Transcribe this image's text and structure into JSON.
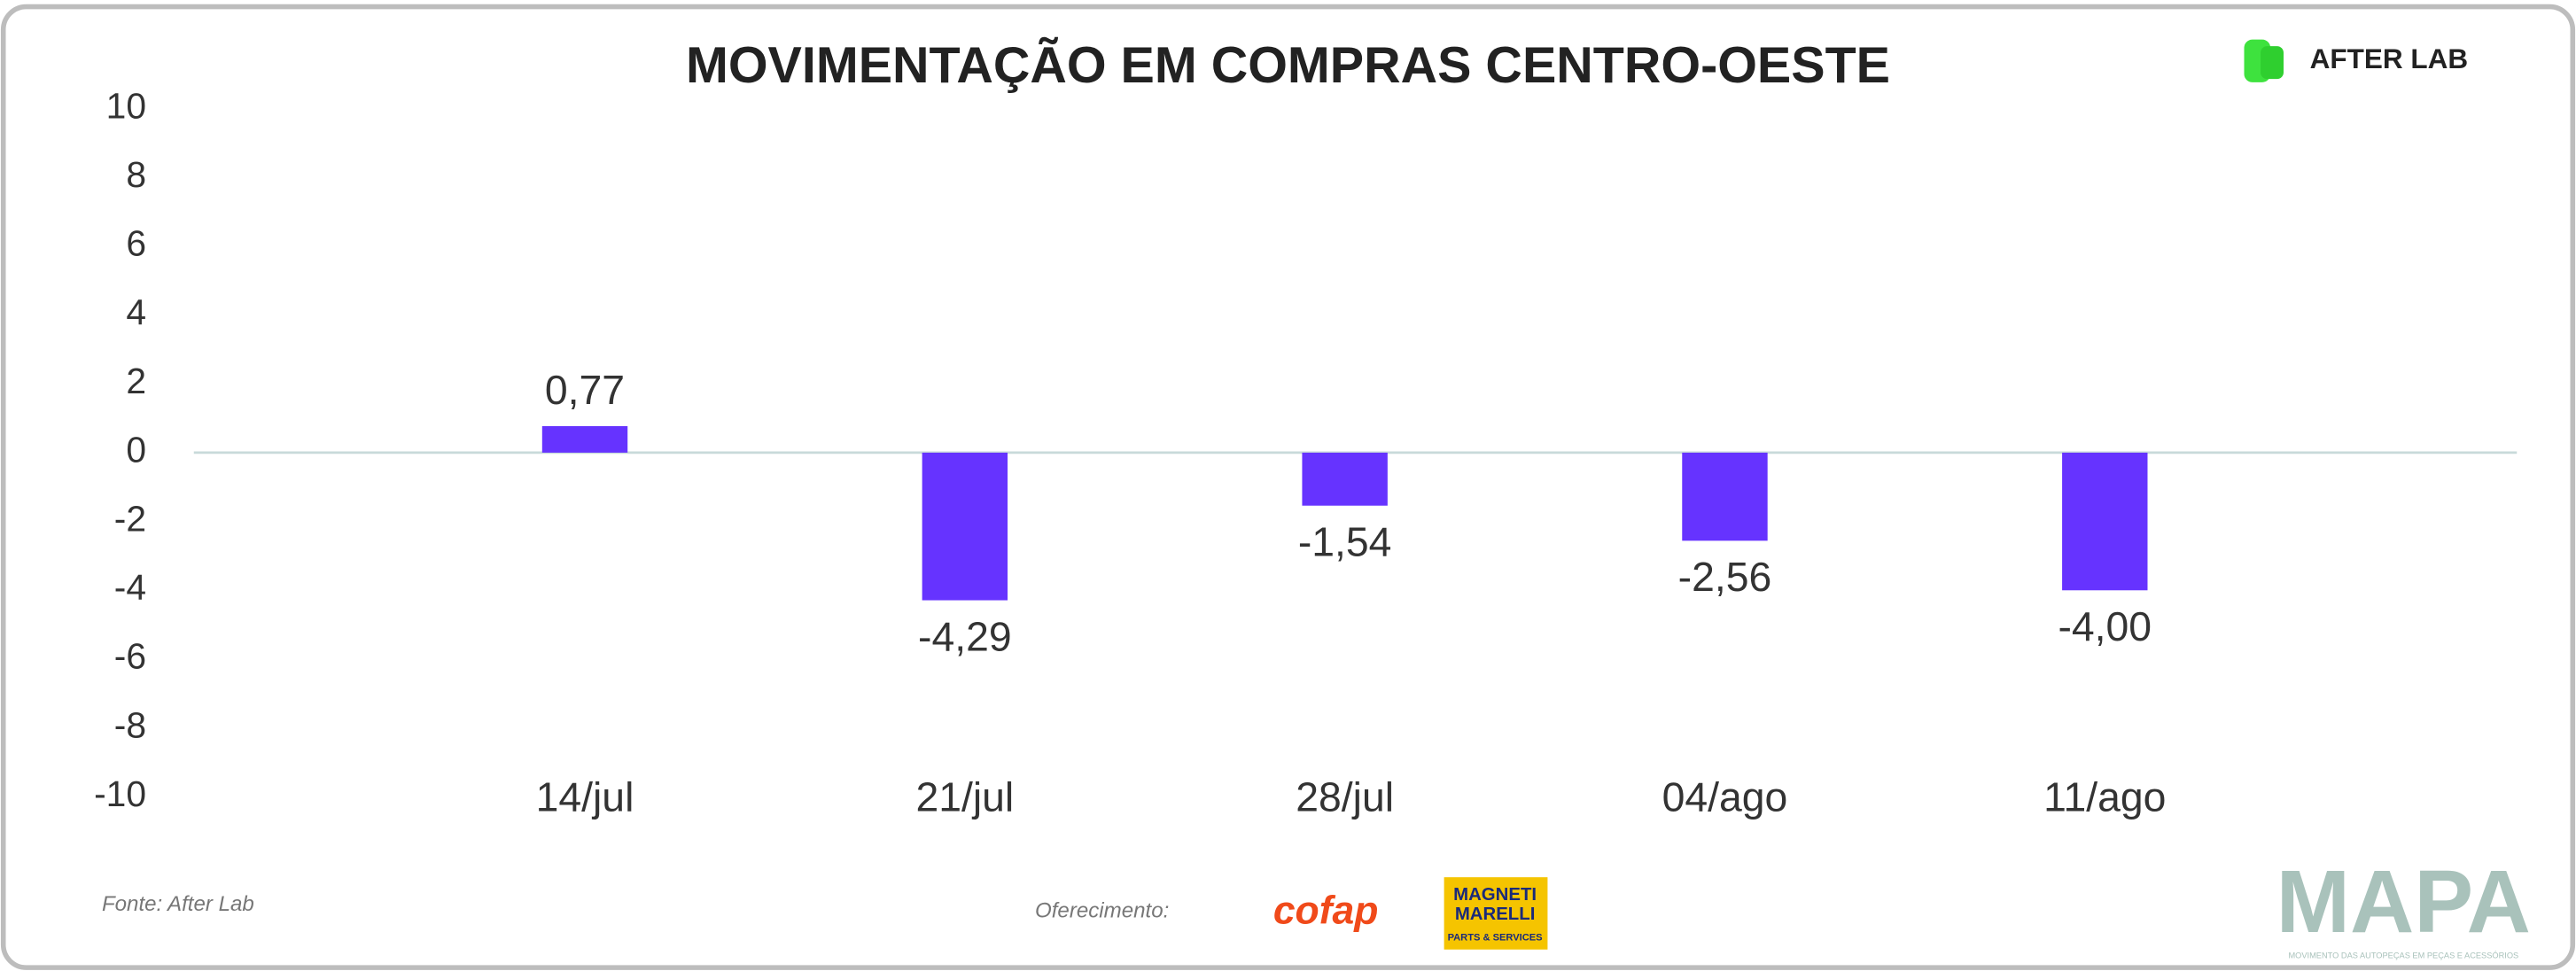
{
  "chart_data": {
    "type": "bar",
    "title": "MOVIMENTAÇÃO EM COMPRAS CENTRO-OESTE",
    "categories": [
      "14/jul",
      "21/jul",
      "28/jul",
      "04/ago",
      "11/ago"
    ],
    "values": [
      0.77,
      -4.29,
      -1.54,
      -2.56,
      -4.0
    ],
    "value_labels": [
      "0,77",
      "-4,29",
      "-1,54",
      "-2,56",
      "-4,00"
    ],
    "color": "#6633ff",
    "ylim": [
      -10,
      10
    ],
    "yticks": [
      -10,
      -8,
      -6,
      -4,
      -2,
      0,
      2,
      4,
      6,
      8,
      10
    ]
  },
  "header": {
    "logo": "AFTER LAB"
  },
  "footer": {
    "source": "Fonte: After Lab",
    "sponsor": "Oferecimento:",
    "cofap": "cofap",
    "magneti": [
      "MAGNETI",
      "MARELLI"
    ],
    "magneti_sub": "PARTS & SERVICES",
    "brand": "MAPA",
    "brand_tagline": "MOVIMENTO DAS AUTOPEÇAS EM PEÇAS E ACESSÓRIOS"
  }
}
